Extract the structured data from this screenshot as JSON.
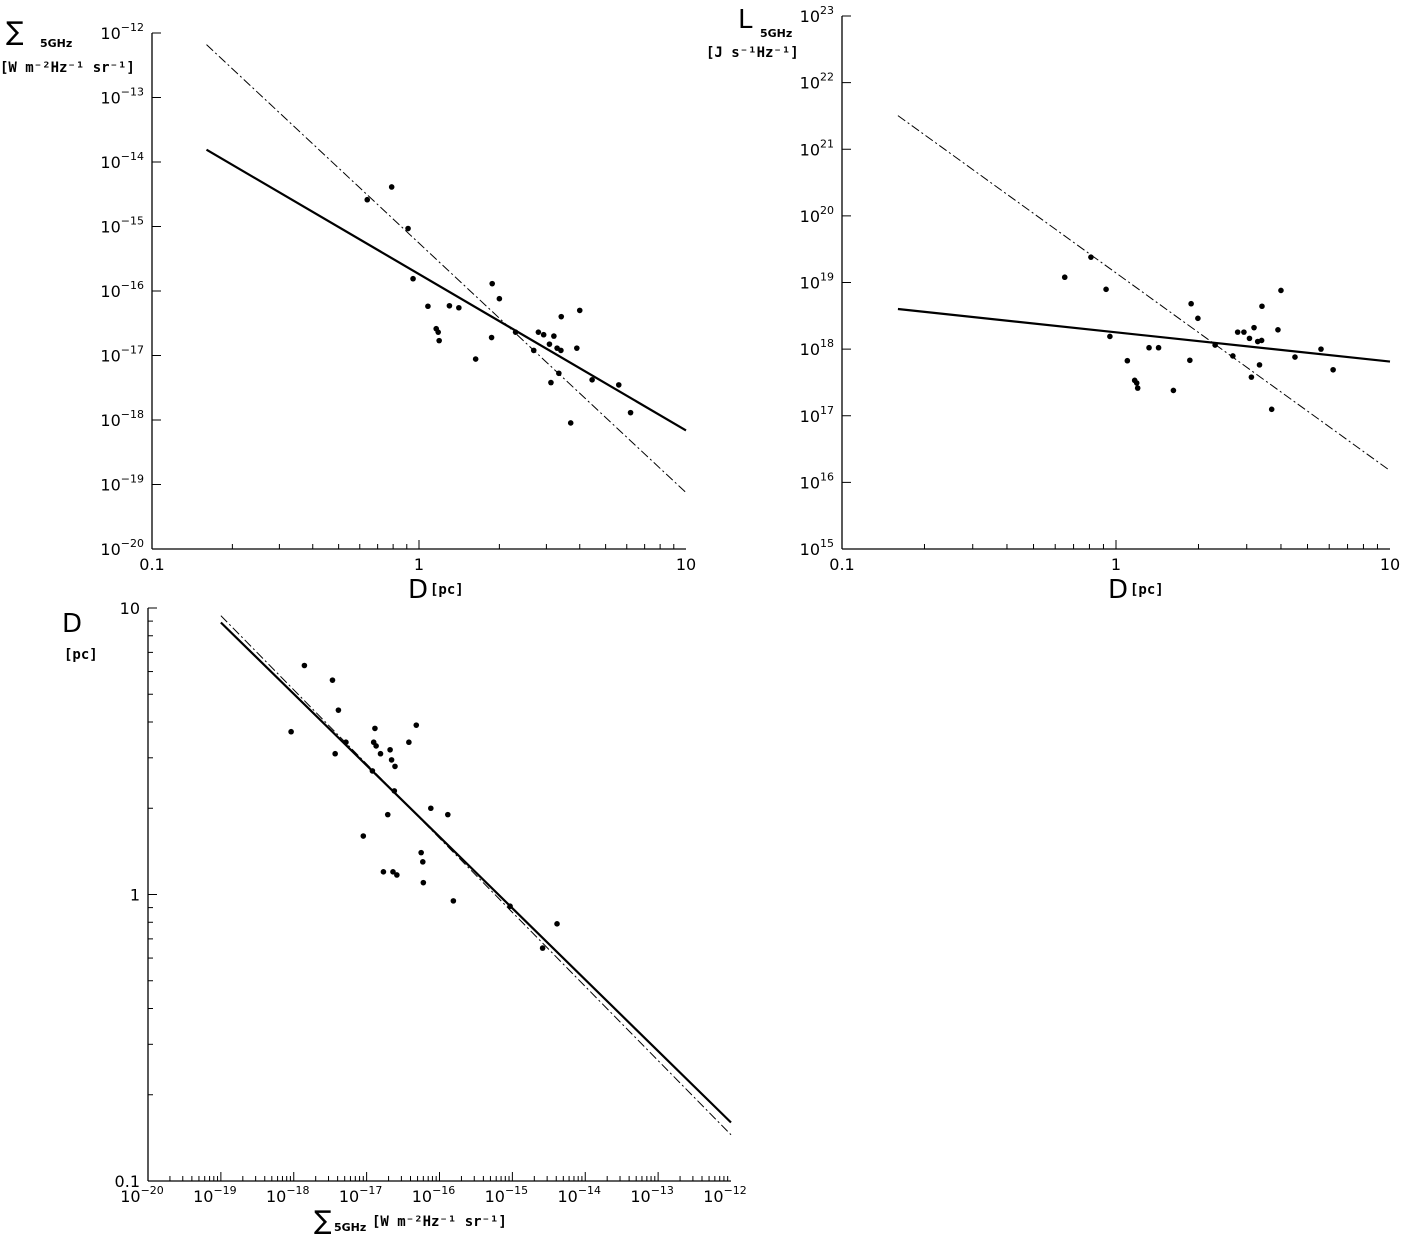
{
  "chart_data": [
    {
      "type": "scatter",
      "id": "sigma-d",
      "xscale": "log",
      "yscale": "log",
      "xlim": [
        0.1,
        10
      ],
      "ylim": [
        1e-20,
        1e-12
      ],
      "xticks": [
        {
          "v": 0.1,
          "label": "0.1"
        },
        {
          "v": 1,
          "label": "1"
        },
        {
          "v": 10,
          "label": "10"
        }
      ],
      "yticks": [
        {
          "v": 1e-20,
          "base": "10",
          "exp": "−20"
        },
        {
          "v": 1e-19,
          "base": "10",
          "exp": "−19"
        },
        {
          "v": 1e-18,
          "base": "10",
          "exp": "−18"
        },
        {
          "v": 1e-17,
          "base": "10",
          "exp": "−17"
        },
        {
          "v": 1e-16,
          "base": "10",
          "exp": "−16"
        },
        {
          "v": 1e-15,
          "base": "10",
          "exp": "−15"
        },
        {
          "v": 1e-14,
          "base": "10",
          "exp": "−14"
        },
        {
          "v": 1e-13,
          "base": "10",
          "exp": "−13"
        },
        {
          "v": 1e-12,
          "base": "10",
          "exp": "−12"
        }
      ],
      "xlabel": {
        "main": "D",
        "sub": "[pc]"
      },
      "ylabel": {
        "main": "∑",
        "sub": "5GHz",
        "unit": "[W m⁻²Hz⁻¹ sr⁻¹]"
      },
      "points": [
        [
          0.64,
          2.6e-15
        ],
        [
          0.79,
          4.1e-15
        ],
        [
          0.91,
          9.3e-16
        ],
        [
          0.95,
          1.55e-16
        ],
        [
          1.08,
          5.8e-17
        ],
        [
          1.16,
          2.6e-17
        ],
        [
          1.18,
          2.3e-17
        ],
        [
          1.19,
          1.7e-17
        ],
        [
          1.3,
          5.9e-17
        ],
        [
          1.41,
          5.5e-17
        ],
        [
          1.63,
          8.8e-18
        ],
        [
          1.87,
          1.9e-17
        ],
        [
          1.88,
          1.3e-16
        ],
        [
          2.0,
          7.6e-17
        ],
        [
          2.3,
          2.3e-17
        ],
        [
          2.69,
          1.2e-17
        ],
        [
          2.8,
          2.3e-17
        ],
        [
          2.93,
          2.1e-17
        ],
        [
          3.08,
          1.5e-17
        ],
        [
          3.12,
          3.8e-18
        ],
        [
          3.2,
          2e-17
        ],
        [
          3.29,
          1.3e-17
        ],
        [
          3.34,
          5.3e-18
        ],
        [
          3.4,
          1.2e-17
        ],
        [
          3.41,
          4e-17
        ],
        [
          3.7,
          9e-19
        ],
        [
          3.9,
          1.3e-17
        ],
        [
          4.0,
          5e-17
        ],
        [
          4.45,
          4.2e-18
        ],
        [
          5.6,
          3.5e-18
        ],
        [
          6.2,
          1.3e-18
        ]
      ],
      "fits": [
        {
          "style": "solid",
          "from": [
            0.16,
            1.55e-14
          ],
          "to": [
            10,
            6.9e-19
          ]
        },
        {
          "style": "dashdot",
          "from": [
            0.16,
            6.6e-13
          ],
          "to": [
            10,
            7.5e-20
          ]
        }
      ]
    },
    {
      "type": "scatter",
      "id": "lum-d",
      "xscale": "log",
      "yscale": "log",
      "xlim": [
        0.1,
        10
      ],
      "ylim": [
        1000000000000000.0,
        1e+23
      ],
      "xticks": [
        {
          "v": 0.1,
          "label": "0.1"
        },
        {
          "v": 1,
          "label": "1"
        },
        {
          "v": 10,
          "label": "10"
        }
      ],
      "yticks": [
        {
          "v": 1000000000000000.0,
          "base": "10",
          "exp": "15"
        },
        {
          "v": 1e+16,
          "base": "10",
          "exp": "16"
        },
        {
          "v": 1e+17,
          "base": "10",
          "exp": "17"
        },
        {
          "v": 1e+18,
          "base": "10",
          "exp": "18"
        },
        {
          "v": 1e+19,
          "base": "10",
          "exp": "19"
        },
        {
          "v": 1e+20,
          "base": "10",
          "exp": "20"
        },
        {
          "v": 1e+21,
          "base": "10",
          "exp": "21"
        },
        {
          "v": 1e+22,
          "base": "10",
          "exp": "22"
        },
        {
          "v": 1e+23,
          "base": "10",
          "exp": "23"
        }
      ],
      "xlabel": {
        "main": "D",
        "sub": "[pc]"
      },
      "ylabel": {
        "main": "L",
        "sub": "5GHz",
        "unit": "[J s⁻¹Hz⁻¹]"
      },
      "points": [
        [
          0.65,
          1.2e+19
        ],
        [
          0.81,
          2.4e+19
        ],
        [
          0.92,
          7.9e+18
        ],
        [
          0.95,
          1.55e+18
        ],
        [
          1.1,
          6.7e+17
        ],
        [
          1.17,
          3.4e+17
        ],
        [
          1.19,
          3.1e+17
        ],
        [
          1.2,
          2.6e+17
        ],
        [
          1.32,
          1.05e+18
        ],
        [
          1.43,
          1.05e+18
        ],
        [
          1.62,
          2.4e+17
        ],
        [
          1.86,
          6.8e+17
        ],
        [
          1.88,
          4.8e+18
        ],
        [
          1.99,
          2.9e+18
        ],
        [
          2.3,
          1.15e+18
        ],
        [
          2.67,
          7.9e+17
        ],
        [
          2.78,
          1.8e+18
        ],
        [
          2.93,
          1.8e+18
        ],
        [
          3.07,
          1.45e+18
        ],
        [
          3.12,
          3.8e+17
        ],
        [
          3.19,
          2.1e+18
        ],
        [
          3.29,
          1.3e+18
        ],
        [
          3.34,
          5.8e+17
        ],
        [
          3.4,
          1.35e+18
        ],
        [
          3.41,
          4.4e+18
        ],
        [
          3.7,
          1.25e+17
        ],
        [
          3.9,
          1.95e+18
        ],
        [
          4.0,
          7.6e+18
        ],
        [
          4.5,
          7.6e+17
        ],
        [
          5.6,
          1e+18
        ],
        [
          6.2,
          4.9e+17
        ]
      ],
      "fits": [
        {
          "style": "solid",
          "from": [
            0.16,
            4e+18
          ],
          "to": [
            10,
            6.5e+17
          ]
        },
        {
          "style": "dashdot",
          "from": [
            0.16,
            3.2e+21
          ],
          "to": [
            10,
            1.5e+16
          ]
        }
      ]
    },
    {
      "type": "scatter",
      "id": "d-sigma",
      "xscale": "log",
      "yscale": "log",
      "xlim": [
        1e-20,
        1e-12
      ],
      "ylim": [
        0.1,
        10
      ],
      "xticks": [
        {
          "v": 1e-20,
          "base": "10",
          "exp": "−20"
        },
        {
          "v": 1e-19,
          "base": "10",
          "exp": "−19"
        },
        {
          "v": 1e-18,
          "base": "10",
          "exp": "−18"
        },
        {
          "v": 1e-17,
          "base": "10",
          "exp": "−17"
        },
        {
          "v": 1e-16,
          "base": "10",
          "exp": "−16"
        },
        {
          "v": 1e-15,
          "base": "10",
          "exp": "−15"
        },
        {
          "v": 1e-14,
          "base": "10",
          "exp": "−14"
        },
        {
          "v": 1e-13,
          "base": "10",
          "exp": "−13"
        },
        {
          "v": 1e-12,
          "base": "10",
          "exp": "−12"
        }
      ],
      "yticks": [
        {
          "v": 0.1,
          "label": "0.1"
        },
        {
          "v": 1,
          "label": "1"
        },
        {
          "v": 10,
          "label": "10"
        }
      ],
      "xlabel": {
        "main": "∑",
        "sub": "5GHz",
        "unit": "[W m⁻²Hz⁻¹ sr⁻¹]"
      },
      "ylabel": {
        "main": "D",
        "sub": "[pc]"
      },
      "points": [
        [
          9.2e-19,
          3.7
        ],
        [
          1.4e-18,
          6.3
        ],
        [
          3.4e-18,
          5.6
        ],
        [
          3.7e-18,
          3.1
        ],
        [
          4.1e-18,
          4.4
        ],
        [
          5.2e-18,
          3.4
        ],
        [
          9e-18,
          1.6
        ],
        [
          1.2e-17,
          2.7
        ],
        [
          1.25e-17,
          3.4
        ],
        [
          1.3e-17,
          3.8
        ],
        [
          1.35e-17,
          3.3
        ],
        [
          1.55e-17,
          3.1
        ],
        [
          1.7e-17,
          1.2
        ],
        [
          1.95e-17,
          1.9
        ],
        [
          2.1e-17,
          3.2
        ],
        [
          2.2e-17,
          2.95
        ],
        [
          2.3e-17,
          1.2
        ],
        [
          2.4e-17,
          2.3
        ],
        [
          2.45e-17,
          2.8
        ],
        [
          2.6e-17,
          1.17
        ],
        [
          3.8e-17,
          3.4
        ],
        [
          4.8e-17,
          3.9
        ],
        [
          5.6e-17,
          1.4
        ],
        [
          5.9e-17,
          1.3
        ],
        [
          6e-17,
          1.1
        ],
        [
          7.6e-17,
          2.0
        ],
        [
          1.3e-16,
          1.9
        ],
        [
          1.55e-16,
          0.95
        ],
        [
          9.3e-16,
          0.91
        ],
        [
          2.6e-15,
          0.65
        ],
        [
          4.1e-15,
          0.79
        ]
      ],
      "fits": [
        {
          "style": "solid",
          "from": [
            1e-19,
            8.9
          ],
          "to": [
            1e-12,
            0.16
          ]
        },
        {
          "style": "dashdot",
          "from": [
            1e-19,
            9.4
          ],
          "to": [
            1e-12,
            0.145
          ]
        }
      ]
    }
  ]
}
